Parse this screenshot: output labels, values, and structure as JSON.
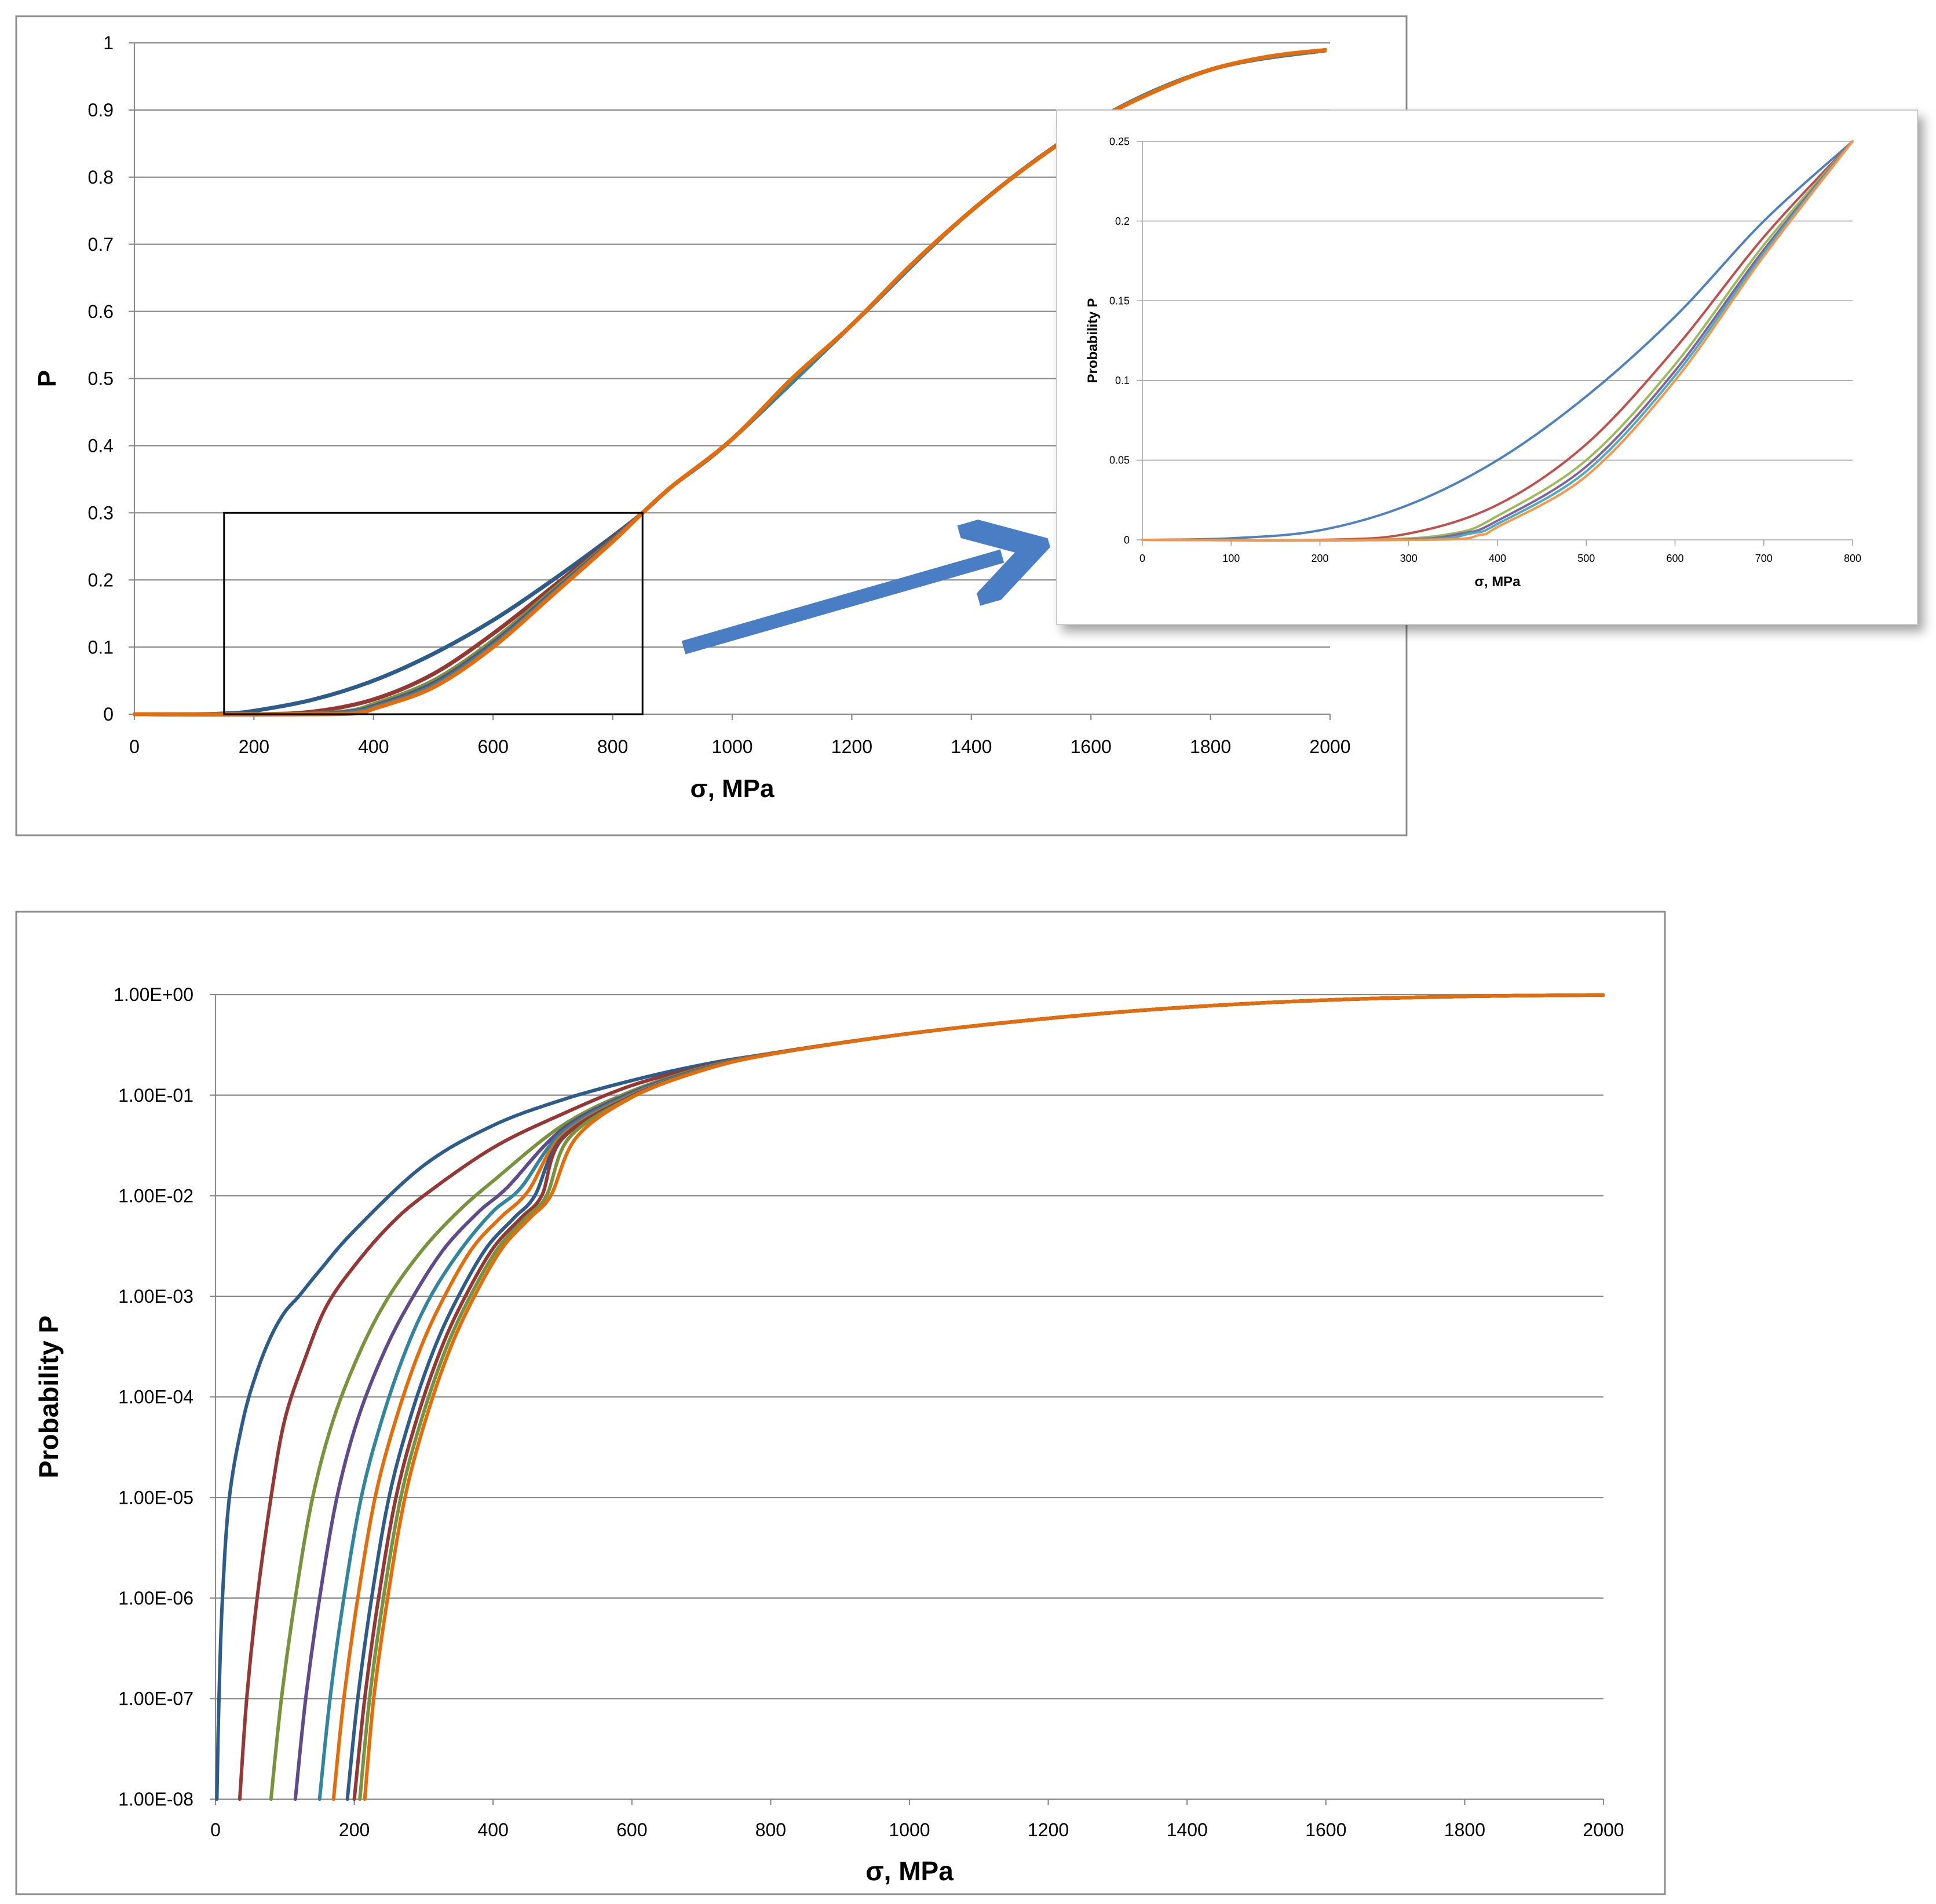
{
  "chart_data": [
    {
      "id": "linear",
      "type": "line",
      "title": "",
      "xlabel": "σ, MPa",
      "ylabel": "P",
      "xlim": [
        0,
        2000
      ],
      "ylim": [
        0,
        1
      ],
      "xticks": [
        0,
        200,
        400,
        600,
        800,
        1000,
        1200,
        1400,
        1600,
        1800,
        2000
      ],
      "yticks": [
        0,
        0.1,
        0.2,
        0.3,
        0.4,
        0.5,
        0.6,
        0.7,
        0.8,
        0.9,
        1
      ],
      "xtick_labels": [
        "0",
        "200",
        "400",
        "600",
        "800",
        "1000",
        "1200",
        "1400",
        "1600",
        "1800",
        "2000"
      ],
      "ytick_labels": [
        "0",
        "0.1",
        "0.2",
        "0.3",
        "0.4",
        "0.5",
        "0.6",
        "0.7",
        "0.8",
        "0.9",
        "1"
      ],
      "grid": "horizontal",
      "zoom_box": {
        "x": [
          150,
          850
        ],
        "y": [
          0,
          0.3
        ]
      },
      "series": [
        {
          "color": "#2E5C8A",
          "x": [
            0,
            100,
            150,
            200,
            300,
            400,
            500,
            600,
            700,
            800,
            850,
            900,
            1000,
            1200,
            1400,
            1600,
            1800,
            2000
          ],
          "y": [
            0,
            0,
            0.001,
            0.005,
            0.022,
            0.05,
            0.09,
            0.14,
            0.2,
            0.265,
            0.3,
            0.34,
            0.41,
            0.58,
            0.75,
            0.88,
            0.96,
            0.99
          ]
        },
        {
          "color": "#953735",
          "x": [
            0,
            200,
            300,
            400,
            500,
            600,
            700,
            800,
            850,
            900,
            1000,
            1200,
            1400,
            1600,
            1800,
            2000
          ],
          "y": [
            0,
            0,
            0.004,
            0.022,
            0.06,
            0.12,
            0.19,
            0.262,
            0.3,
            0.34,
            0.41,
            0.58,
            0.75,
            0.88,
            0.96,
            0.99
          ]
        },
        {
          "color": "#77933C",
          "x": [
            0,
            250,
            350,
            400,
            500,
            600,
            700,
            800,
            850,
            900,
            1000,
            1200,
            1400,
            1600,
            1800,
            2000
          ],
          "y": [
            0,
            0,
            0.004,
            0.015,
            0.05,
            0.11,
            0.185,
            0.26,
            0.3,
            0.34,
            0.41,
            0.58,
            0.75,
            0.88,
            0.96,
            0.99
          ]
        },
        {
          "color": "#5F4B8B",
          "x": [
            0,
            280,
            360,
            400,
            500,
            600,
            700,
            800,
            850,
            900,
            1000,
            1200,
            1400,
            1600,
            1800,
            2000
          ],
          "y": [
            0,
            0,
            0.004,
            0.012,
            0.046,
            0.106,
            0.182,
            0.259,
            0.3,
            0.34,
            0.41,
            0.58,
            0.75,
            0.88,
            0.96,
            0.99
          ]
        },
        {
          "color": "#31859C",
          "x": [
            0,
            300,
            370,
            400,
            500,
            600,
            700,
            800,
            850,
            900,
            1000,
            1200,
            1400,
            1600,
            1800,
            2000
          ],
          "y": [
            0,
            0,
            0.004,
            0.01,
            0.043,
            0.103,
            0.18,
            0.258,
            0.3,
            0.34,
            0.41,
            0.58,
            0.75,
            0.88,
            0.96,
            0.99
          ]
        },
        {
          "color": "#E46C0A",
          "x": [
            0,
            320,
            380,
            400,
            500,
            600,
            700,
            800,
            850,
            900,
            1000,
            1100,
            1200,
            1300,
            1400,
            1500,
            1600,
            1700,
            1800,
            1900,
            2000
          ],
          "y": [
            0,
            0,
            0.003,
            0.008,
            0.04,
            0.1,
            0.178,
            0.257,
            0.3,
            0.34,
            0.41,
            0.5,
            0.58,
            0.67,
            0.75,
            0.82,
            0.88,
            0.925,
            0.96,
            0.98,
            0.99
          ]
        }
      ]
    },
    {
      "id": "inset",
      "type": "line",
      "title": "",
      "xlabel": "σ, MPa",
      "ylabel": "Probability P",
      "xlim": [
        0,
        800
      ],
      "ylim": [
        0,
        0.25
      ],
      "xticks": [
        0,
        100,
        200,
        300,
        400,
        500,
        600,
        700,
        800
      ],
      "yticks": [
        0,
        0.05,
        0.1,
        0.15,
        0.2,
        0.25
      ],
      "xtick_labels": [
        "0",
        "100",
        "200",
        "300",
        "400",
        "500",
        "600",
        "700",
        "800"
      ],
      "ytick_labels": [
        "0",
        "0.05",
        "0.1",
        "0.15",
        "0.2",
        "0.25"
      ],
      "grid": "horizontal",
      "series": [
        {
          "color": "#4F81BD",
          "x": [
            0,
            100,
            200,
            300,
            400,
            500,
            600,
            700,
            800
          ],
          "y": [
            0,
            0.001,
            0.006,
            0.022,
            0.05,
            0.09,
            0.14,
            0.2,
            0.25
          ]
        },
        {
          "color": "#C0504D",
          "x": [
            0,
            200,
            300,
            400,
            500,
            600,
            700,
            800
          ],
          "y": [
            0,
            0,
            0.004,
            0.022,
            0.06,
            0.12,
            0.19,
            0.25
          ]
        },
        {
          "color": "#9BBB59",
          "x": [
            0,
            250,
            350,
            400,
            500,
            600,
            700,
            800
          ],
          "y": [
            0,
            0,
            0.004,
            0.015,
            0.05,
            0.11,
            0.185,
            0.25
          ]
        },
        {
          "color": "#8064A2",
          "x": [
            0,
            280,
            360,
            400,
            500,
            600,
            700,
            800
          ],
          "y": [
            0,
            0,
            0.004,
            0.012,
            0.046,
            0.106,
            0.182,
            0.25
          ]
        },
        {
          "color": "#4BACC6",
          "x": [
            0,
            300,
            370,
            400,
            500,
            600,
            700,
            800
          ],
          "y": [
            0,
            0,
            0.004,
            0.01,
            0.043,
            0.103,
            0.18,
            0.25
          ]
        },
        {
          "color": "#F79646",
          "x": [
            0,
            320,
            380,
            400,
            500,
            600,
            700,
            800
          ],
          "y": [
            0,
            0,
            0.003,
            0.008,
            0.04,
            0.1,
            0.178,
            0.25
          ]
        }
      ]
    },
    {
      "id": "log",
      "type": "line",
      "title": "",
      "xlabel": "σ, MPa",
      "ylabel": "Probability P",
      "xlim": [
        0,
        2000
      ],
      "yscale": "log",
      "ylim": [
        1e-08,
        1
      ],
      "xticks": [
        0,
        200,
        400,
        600,
        800,
        1000,
        1200,
        1400,
        1600,
        1800,
        2000
      ],
      "yticks": [
        1e-08,
        1e-07,
        1e-06,
        1e-05,
        0.0001,
        0.001,
        0.01,
        0.1,
        1
      ],
      "xtick_labels": [
        "0",
        "200",
        "400",
        "600",
        "800",
        "1000",
        "1200",
        "1400",
        "1600",
        "1800",
        "2000"
      ],
      "ytick_labels": [
        "1.00E-08",
        "1.00E-07",
        "1.00E-06",
        "1.00E-05",
        "1.00E-04",
        "1.00E-03",
        "1.00E-02",
        "1.00E-01",
        "1.00E+00"
      ],
      "grid": "horizontal",
      "series": [
        {
          "color": "#2E5C8A",
          "x": [
            2,
            5,
            10,
            20,
            40,
            60,
            80,
            100,
            120,
            150,
            200,
            300,
            400,
            500,
            600,
            700,
            800,
            1000,
            1200,
            1400,
            1600,
            1800,
            2000
          ],
          "y": [
            1e-08,
            1e-07,
            1e-06,
            1e-05,
            6e-05,
            0.00018,
            0.0004,
            0.0007,
            0.001,
            0.0018,
            0.0045,
            0.02,
            0.05,
            0.09,
            0.14,
            0.2,
            0.26,
            0.41,
            0.58,
            0.75,
            0.88,
            0.96,
            0.99
          ]
        },
        {
          "color": "#953735",
          "x": [
            35,
            45,
            60,
            80,
            100,
            130,
            160,
            200,
            250,
            300,
            400,
            500,
            600,
            700,
            800,
            1000,
            1200,
            1400,
            1600,
            1800,
            2000
          ],
          "y": [
            1e-08,
            1e-07,
            1e-06,
            1e-05,
            6e-05,
            0.00025,
            0.0008,
            0.002,
            0.005,
            0.01,
            0.03,
            0.065,
            0.125,
            0.19,
            0.26,
            0.41,
            0.58,
            0.75,
            0.88,
            0.96,
            0.99
          ]
        },
        {
          "color": "#77933C",
          "x": [
            80,
            95,
            115,
            140,
            170,
            210,
            250,
            300,
            350,
            400,
            500,
            600,
            700,
            800,
            1000,
            1200,
            1400,
            1600,
            1800,
            2000
          ],
          "y": [
            1e-08,
            1e-07,
            1e-06,
            1e-05,
            6e-05,
            0.0003,
            0.001,
            0.003,
            0.007,
            0.014,
            0.05,
            0.11,
            0.185,
            0.26,
            0.41,
            0.58,
            0.75,
            0.88,
            0.96,
            0.99
          ]
        },
        {
          "color": "#5F4B8B",
          "x": [
            115,
            130,
            150,
            175,
            205,
            245,
            285,
            330,
            380,
            420,
            500,
            600,
            700,
            800,
            1000,
            1200,
            1400,
            1600,
            1800,
            2000
          ],
          "y": [
            1e-08,
            1e-07,
            1e-06,
            1e-05,
            6e-05,
            0.0003,
            0.001,
            0.003,
            0.007,
            0.012,
            0.046,
            0.106,
            0.182,
            0.259,
            0.41,
            0.58,
            0.75,
            0.88,
            0.96,
            0.99
          ]
        },
        {
          "color": "#31859C",
          "x": [
            150,
            165,
            185,
            210,
            240,
            275,
            310,
            355,
            400,
            440,
            500,
            600,
            700,
            800,
            1000,
            1200,
            1400,
            1600,
            1800,
            2000
          ],
          "y": [
            1e-08,
            1e-07,
            1e-06,
            1e-05,
            6e-05,
            0.0003,
            0.001,
            0.003,
            0.007,
            0.012,
            0.043,
            0.103,
            0.18,
            0.258,
            0.41,
            0.58,
            0.75,
            0.88,
            0.96,
            0.99
          ]
        },
        {
          "color": "#E46C0A",
          "x": [
            170,
            185,
            205,
            230,
            260,
            295,
            330,
            370,
            410,
            450,
            500,
            600,
            700,
            800,
            1000,
            1200,
            1400,
            1600,
            1800,
            2000
          ],
          "y": [
            1e-08,
            1e-07,
            1e-06,
            1e-05,
            6e-05,
            0.0003,
            0.001,
            0.003,
            0.006,
            0.011,
            0.04,
            0.1,
            0.178,
            0.257,
            0.41,
            0.58,
            0.75,
            0.88,
            0.96,
            0.99
          ]
        },
        {
          "color": "#2E5C8A",
          "x": [
            190,
            205,
            225,
            250,
            280,
            315,
            350,
            390,
            430,
            460,
            500,
            600,
            700,
            800,
            1000,
            1200,
            1400,
            1600,
            1800,
            2000
          ],
          "y": [
            1e-08,
            1e-07,
            1e-06,
            1e-05,
            6e-05,
            0.0003,
            0.001,
            0.003,
            0.006,
            0.01,
            0.038,
            0.098,
            0.177,
            0.256,
            0.41,
            0.58,
            0.75,
            0.88,
            0.96,
            0.99
          ]
        },
        {
          "color": "#953735",
          "x": [
            200,
            215,
            235,
            260,
            290,
            325,
            360,
            400,
            440,
            470,
            500,
            600,
            700,
            800,
            1000,
            1200,
            1400,
            1600,
            1800,
            2000
          ],
          "y": [
            1e-08,
            1e-07,
            1e-06,
            1e-05,
            6e-05,
            0.0003,
            0.001,
            0.003,
            0.006,
            0.01,
            0.037,
            0.097,
            0.176,
            0.256,
            0.41,
            0.58,
            0.75,
            0.88,
            0.96,
            0.99
          ]
        },
        {
          "color": "#77933C",
          "x": [
            208,
            222,
            242,
            267,
            297,
            332,
            367,
            407,
            447,
            477,
            510,
            600,
            700,
            800,
            1000,
            1200,
            1400,
            1600,
            1800,
            2000
          ],
          "y": [
            1e-08,
            1e-07,
            1e-06,
            1e-05,
            6e-05,
            0.0003,
            0.001,
            0.003,
            0.006,
            0.01,
            0.038,
            0.096,
            0.176,
            0.255,
            0.41,
            0.58,
            0.75,
            0.88,
            0.96,
            0.99
          ]
        },
        {
          "color": "#E46C0A",
          "x": [
            215,
            228,
            248,
            273,
            303,
            338,
            373,
            413,
            453,
            483,
            520,
            600,
            700,
            800,
            1000,
            1200,
            1400,
            1600,
            1800,
            2000
          ],
          "y": [
            1e-08,
            1e-07,
            1e-06,
            1e-05,
            6e-05,
            0.0003,
            0.001,
            0.003,
            0.006,
            0.01,
            0.038,
            0.095,
            0.175,
            0.255,
            0.41,
            0.58,
            0.75,
            0.88,
            0.96,
            0.99
          ]
        }
      ]
    }
  ]
}
